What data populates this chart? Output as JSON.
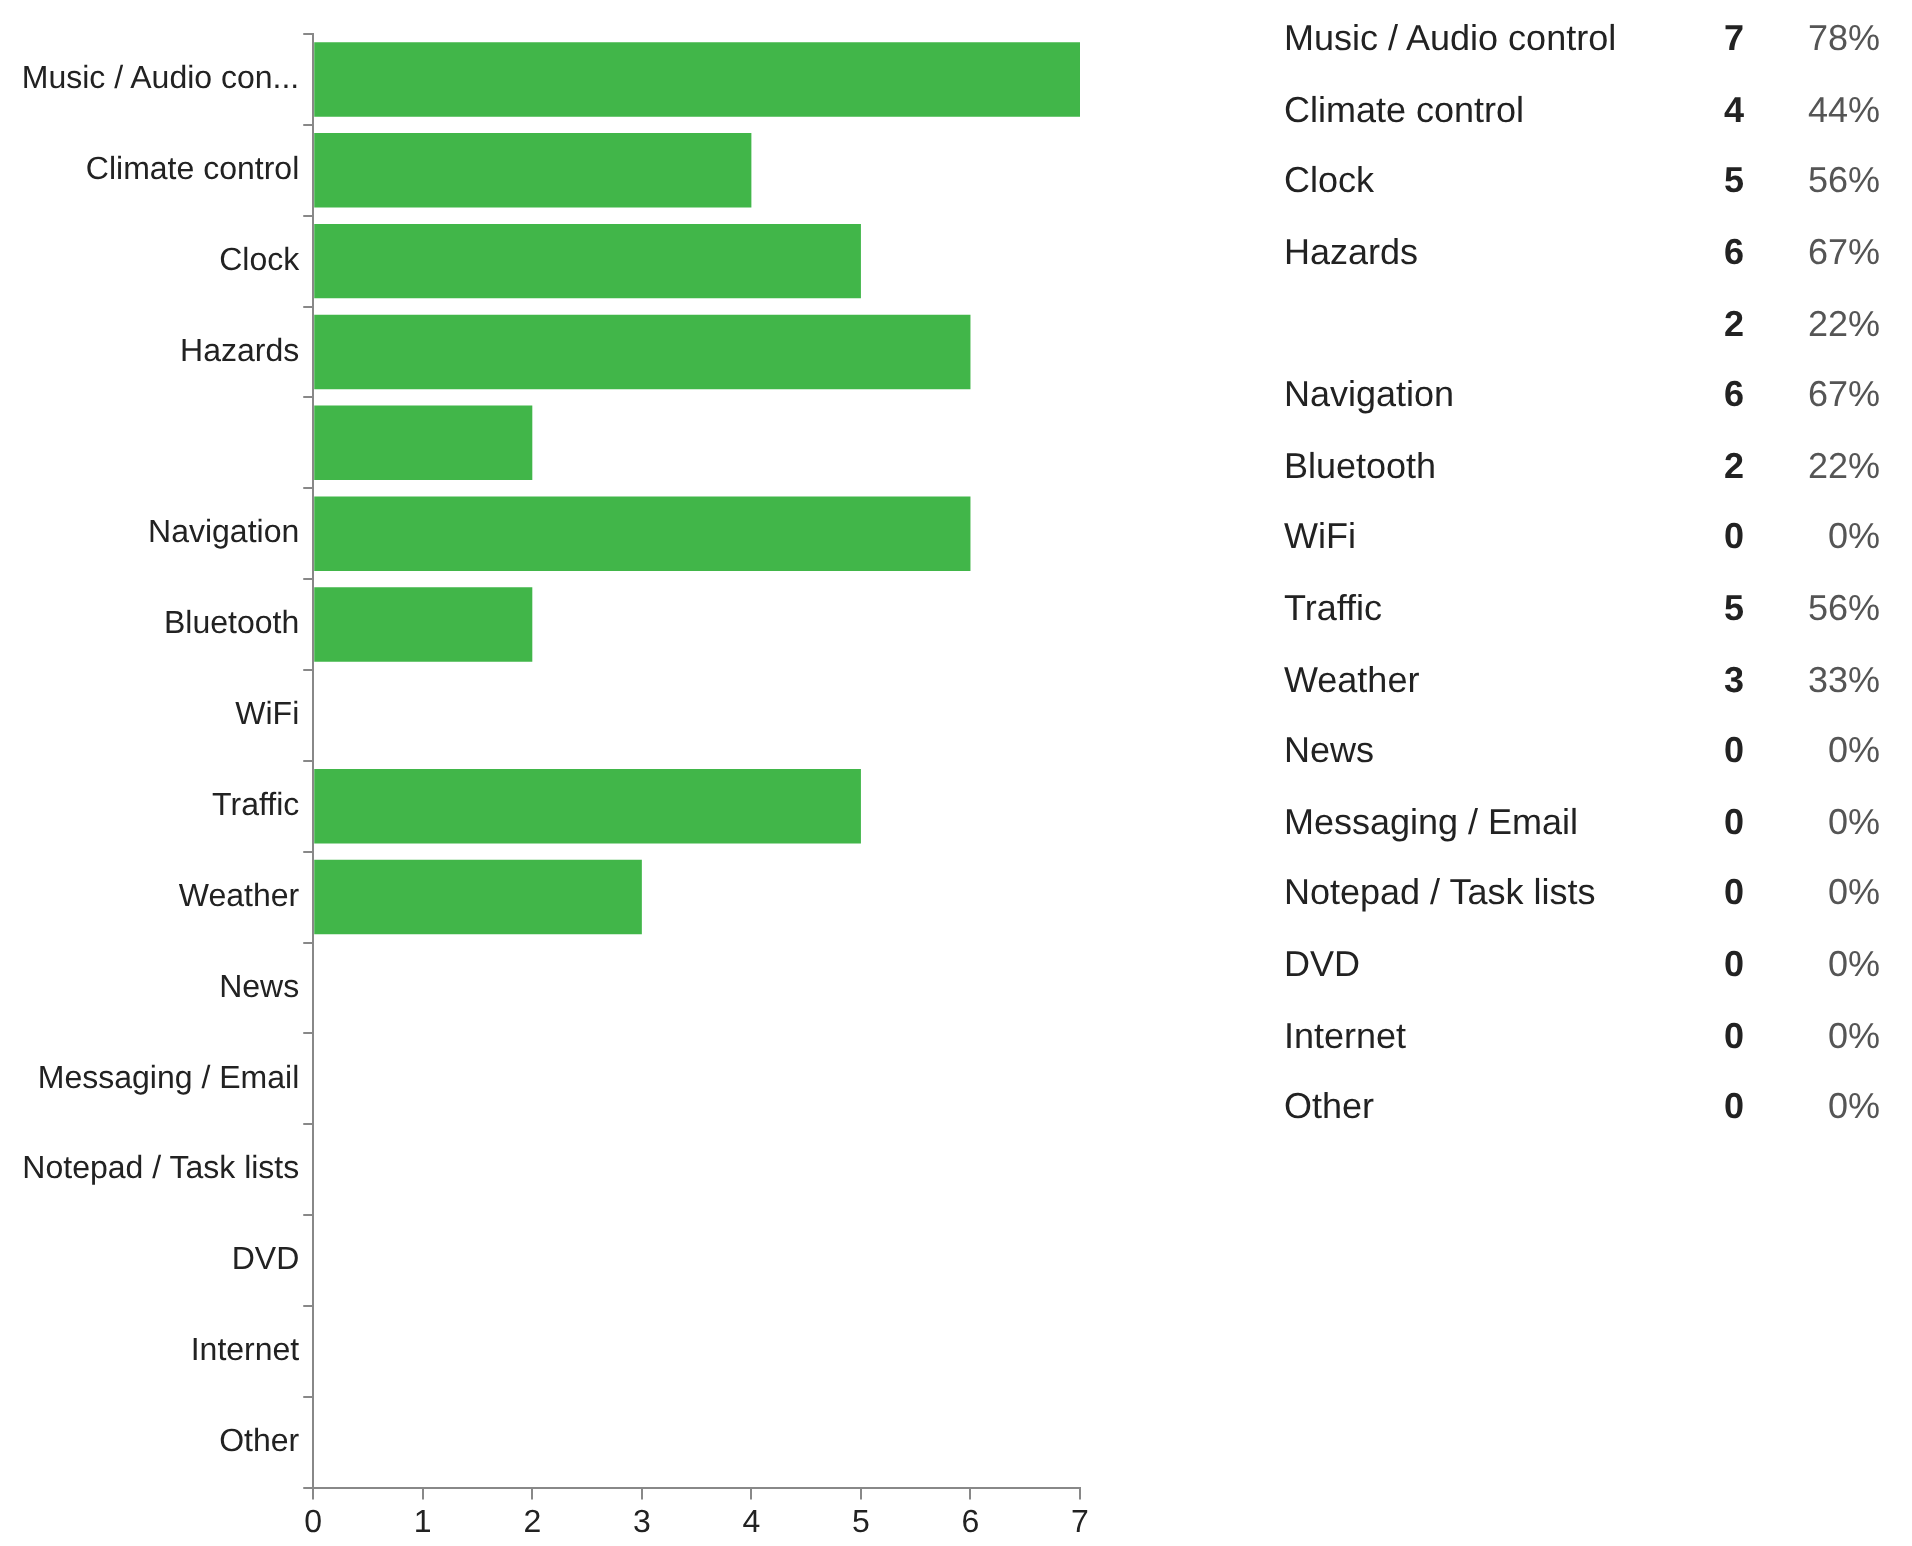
{
  "chart_data": [
    {
      "type": "bar",
      "orientation": "horizontal",
      "categories": [
        "Music / Audio con...",
        "Climate control",
        "Clock",
        "Hazards",
        null,
        "Navigation",
        "Bluetooth",
        "WiFi",
        "Traffic",
        "Weather",
        "News",
        "Messaging / Email",
        "Notepad / Task lists",
        "DVD",
        "Internet",
        "Other"
      ],
      "values": [
        7,
        4,
        5,
        6,
        2,
        6,
        2,
        0,
        5,
        3,
        0,
        0,
        0,
        0,
        0,
        0
      ],
      "color": "#41b649",
      "xlim": [
        0,
        7
      ],
      "xticks": [
        0,
        1,
        2,
        3,
        4,
        5,
        6,
        7
      ],
      "grid": false,
      "legend": false
    },
    {
      "type": "other",
      "categories": [
        "Music / Audio control",
        "Climate control",
        "Clock",
        "Hazards",
        null,
        "Navigation",
        "Bluetooth",
        "WiFi",
        "Traffic",
        "Weather",
        "News",
        "Messaging / Email",
        "Notepad / Task lists",
        "DVD",
        "Internet",
        "Other"
      ],
      "values": [
        7,
        4,
        5,
        6,
        2,
        6,
        2,
        0,
        5,
        3,
        0,
        0,
        0,
        0,
        0,
        0
      ],
      "data_labels": true,
      "annotations": [
        "78%",
        "44%",
        "56%",
        "67%",
        "22%",
        "67%",
        "22%",
        "0%",
        "56%",
        "33%",
        "0%",
        "0%",
        "0%",
        "0%",
        "0%",
        "0%"
      ]
    }
  ]
}
